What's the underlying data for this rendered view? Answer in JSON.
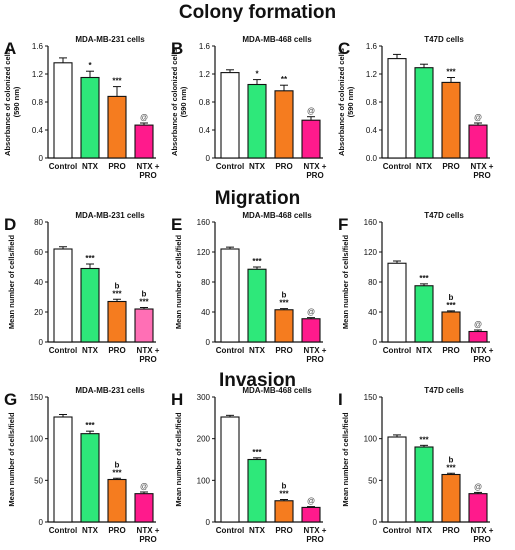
{
  "sections": [
    "Colony formation",
    "Migration",
    "Invasion"
  ],
  "colors": {
    "Control": "#ffffff",
    "NTX": "#2ee87a",
    "PRO": "#f57c1f",
    "NTX + PRO": "#ff1a8c",
    "NTX + PRO light": "#ff6fb5"
  },
  "chart_data": [
    {
      "type": "bar",
      "letter": "A",
      "title": "MDA-MB-231 cells",
      "ylabel": "Absorbance of colonized cells (590 nm)",
      "ylim": [
        0,
        1.6
      ],
      "yticks": [
        "0",
        "0.4",
        "0.8",
        "1.2",
        "1.6"
      ],
      "categories": [
        "Control",
        "NTX",
        "PRO",
        "NTX + PRO"
      ],
      "values": [
        1.36,
        1.15,
        0.88,
        0.47
      ],
      "errors": [
        0.07,
        0.09,
        0.14,
        0.03
      ],
      "annotations": [
        "",
        "*",
        "***",
        "@"
      ]
    },
    {
      "type": "bar",
      "letter": "B",
      "title": "MDA-MB-468 cells",
      "ylabel": "Absorbance of colonized cells (590 nm)",
      "ylim": [
        0,
        1.6
      ],
      "yticks": [
        "0",
        "0.4",
        "0.8",
        "1.2",
        "1.6"
      ],
      "categories": [
        "Control",
        "NTX",
        "PRO",
        "NTX + PRO"
      ],
      "values": [
        1.22,
        1.05,
        0.96,
        0.54
      ],
      "errors": [
        0.04,
        0.07,
        0.08,
        0.05
      ],
      "annotations": [
        "",
        "*",
        "**",
        "@"
      ]
    },
    {
      "type": "bar",
      "letter": "C",
      "title": "T47D cells",
      "ylabel": "Absorbance of colonized cells (590 nm)",
      "ylim": [
        0,
        1.6
      ],
      "yticks": [
        "0.0",
        "0.4",
        "0.8",
        "1.2",
        "1.6"
      ],
      "categories": [
        "Control",
        "NTX",
        "PRO",
        "NTX + PRO"
      ],
      "values": [
        1.42,
        1.29,
        1.08,
        0.47
      ],
      "errors": [
        0.06,
        0.05,
        0.07,
        0.03
      ],
      "annotations": [
        "",
        "",
        "***",
        "@"
      ]
    },
    {
      "type": "bar",
      "letter": "D",
      "title": "MDA-MB-231 cells",
      "ylabel": "Mean number of cells/field",
      "ylim": [
        0,
        80
      ],
      "yticks": [
        "0",
        "20",
        "40",
        "60",
        "80"
      ],
      "categories": [
        "Control",
        "NTX",
        "PRO",
        "NTX + PRO"
      ],
      "values": [
        62,
        49,
        27,
        22
      ],
      "errors": [
        1.5,
        3,
        1.5,
        1
      ],
      "annotations": [
        "",
        "***",
        "b\n***",
        "b\n***"
      ]
    },
    {
      "type": "bar",
      "letter": "E",
      "title": "MDA-MB-468 cells",
      "ylabel": "Mean number of cells/field",
      "ylim": [
        0,
        160
      ],
      "yticks": [
        "0",
        "40",
        "80",
        "120",
        "160"
      ],
      "categories": [
        "Control",
        "NTX",
        "PRO",
        "NTX + PRO"
      ],
      "values": [
        124,
        97,
        43,
        31
      ],
      "errors": [
        2.5,
        3,
        1.5,
        1.5
      ],
      "annotations": [
        "",
        "***",
        "b\n***",
        "@"
      ]
    },
    {
      "type": "bar",
      "letter": "F",
      "title": "T47D cells",
      "ylabel": "Mean number of cells/field",
      "ylim": [
        0,
        160
      ],
      "yticks": [
        "0",
        "40",
        "80",
        "120",
        "160"
      ],
      "categories": [
        "Control",
        "NTX",
        "PRO",
        "NTX + PRO"
      ],
      "values": [
        105,
        75,
        40,
        14
      ],
      "errors": [
        3,
        2.5,
        1.5,
        2
      ],
      "annotations": [
        "",
        "***",
        "b\n***",
        "@"
      ]
    },
    {
      "type": "bar",
      "letter": "G",
      "title": "MDA-MB-231 cells",
      "ylabel": "Mean number of cells/field",
      "ylim": [
        0,
        150
      ],
      "yticks": [
        "0",
        "50",
        "100",
        "150"
      ],
      "categories": [
        "Control",
        "NTX",
        "PRO",
        "NTX + PRO"
      ],
      "values": [
        126,
        106,
        51,
        34
      ],
      "errors": [
        3,
        3,
        1.5,
        2
      ],
      "annotations": [
        "",
        "***",
        "b\n***",
        "@"
      ]
    },
    {
      "type": "bar",
      "letter": "H",
      "title": "MDA-MB-468 cells",
      "ylabel": "Mean number of cells/field",
      "ylim": [
        0,
        300
      ],
      "yticks": [
        "0",
        "100",
        "200",
        "300"
      ],
      "categories": [
        "Control",
        "NTX",
        "PRO",
        "NTX + PRO"
      ],
      "values": [
        252,
        150,
        51,
        35
      ],
      "errors": [
        4,
        4,
        3,
        2
      ],
      "annotations": [
        "",
        "***",
        "b\n***",
        "@"
      ]
    },
    {
      "type": "bar",
      "letter": "I",
      "title": "T47D cells",
      "ylabel": "Mean number of cells/field",
      "ylim": [
        0,
        150
      ],
      "yticks": [
        "0",
        "50",
        "100",
        "150"
      ],
      "categories": [
        "Control",
        "NTX",
        "PRO",
        "NTX + PRO"
      ],
      "values": [
        102,
        90,
        57,
        34
      ],
      "errors": [
        2.5,
        2,
        1.5,
        1.5
      ],
      "annotations": [
        "",
        "***",
        "b\n***",
        "@"
      ]
    }
  ]
}
